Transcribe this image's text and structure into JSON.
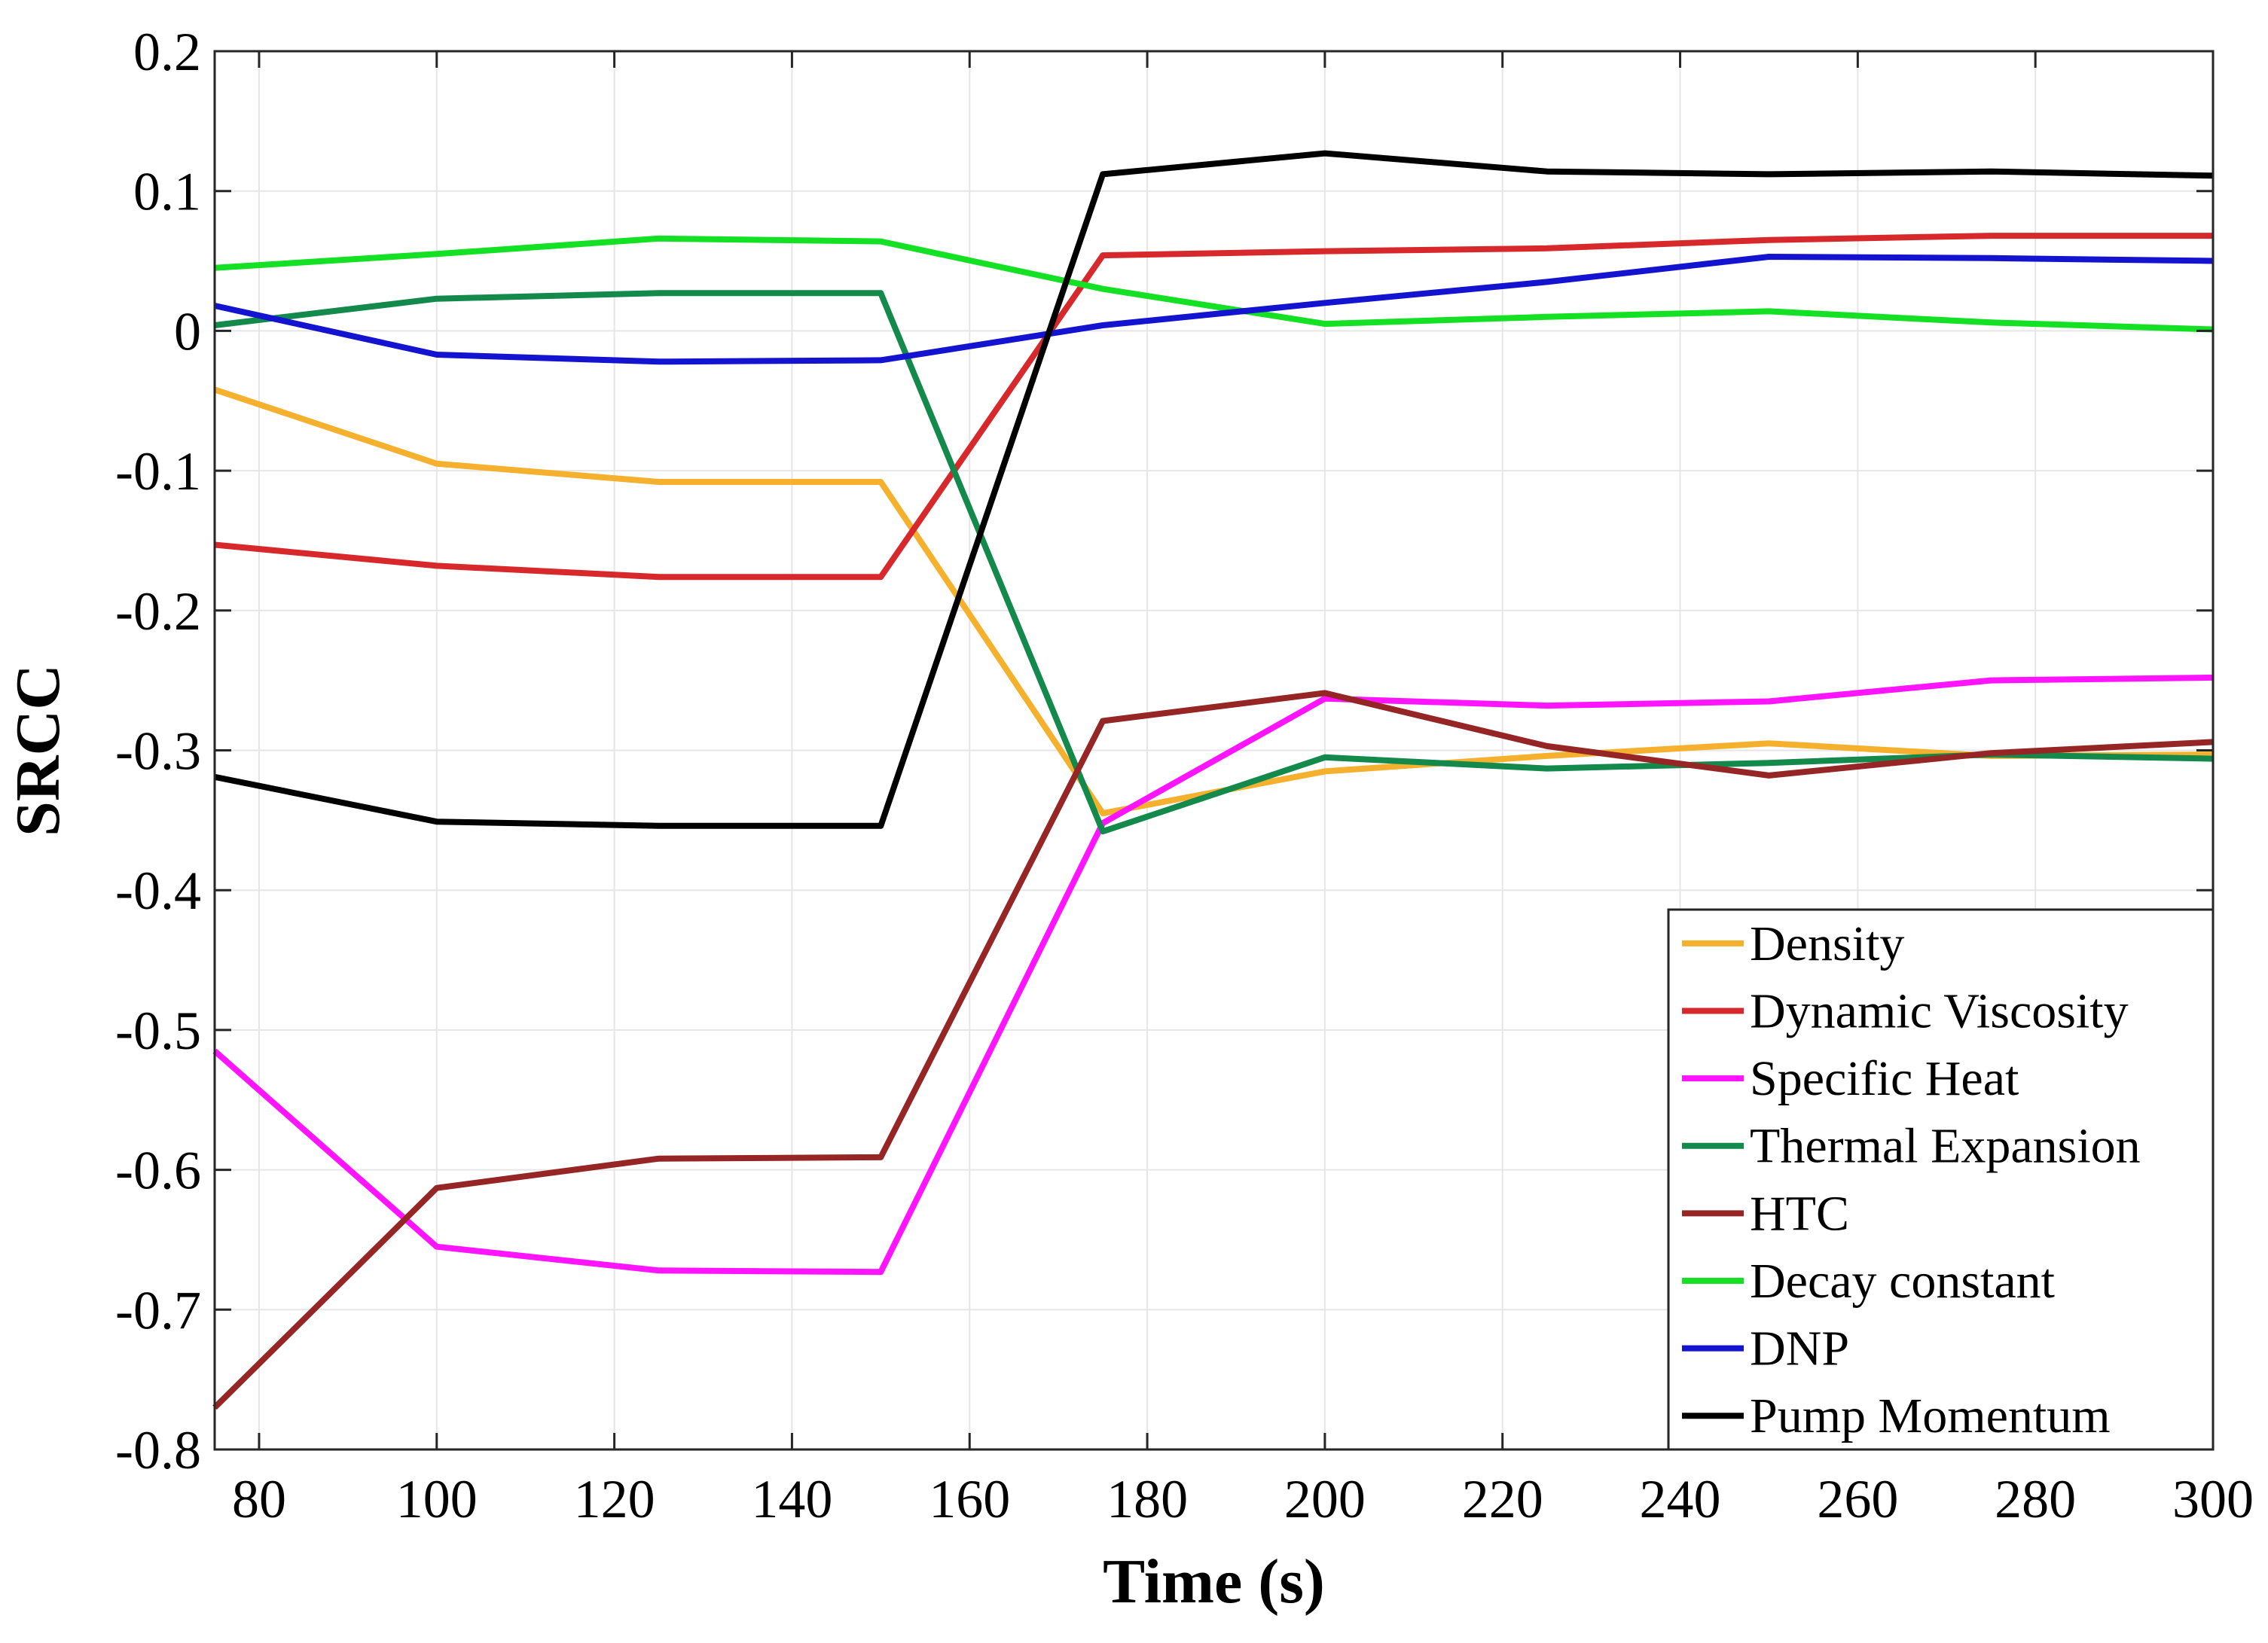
{
  "chart_data": {
    "type": "line",
    "title": "",
    "xlabel": "Time (s)",
    "ylabel": "SRCC",
    "xlim": [
      75,
      300
    ],
    "ylim": [
      -0.8,
      0.2
    ],
    "grid": true,
    "legend_position": "bottom-right",
    "x": [
      75,
      100,
      125,
      150,
      175,
      200,
      225,
      250,
      275,
      300
    ],
    "xticks": [
      80,
      100,
      120,
      140,
      160,
      180,
      200,
      220,
      240,
      260,
      280,
      300
    ],
    "xtick_labels": [
      "80",
      "100",
      "120",
      "140",
      "160",
      "180",
      "200",
      "220",
      "240",
      "260",
      "280",
      "300"
    ],
    "yticks": [
      0.2,
      0.1,
      0,
      -0.1,
      -0.2,
      -0.3,
      -0.4,
      -0.5,
      -0.6,
      -0.7,
      -0.8
    ],
    "ytick_labels": [
      "0.2",
      "0.1",
      "0",
      "-0.1",
      "-0.2",
      "-0.3",
      "-0.4",
      "-0.5",
      "-0.6",
      "-0.7",
      "-0.8"
    ],
    "series": [
      {
        "name": "Density",
        "color": "#f5b12e",
        "values": [
          -0.042,
          -0.095,
          -0.108,
          -0.108,
          -0.345,
          -0.315,
          -0.304,
          -0.295,
          -0.304,
          -0.303
        ]
      },
      {
        "name": "Dynamic Viscosity",
        "color": "#d7292b",
        "values": [
          -0.153,
          -0.168,
          -0.176,
          -0.176,
          0.054,
          0.057,
          0.059,
          0.065,
          0.068,
          0.068
        ]
      },
      {
        "name": "Specific Heat",
        "color": "#ff14ff",
        "values": [
          -0.515,
          -0.655,
          -0.672,
          -0.673,
          -0.352,
          -0.263,
          -0.268,
          -0.265,
          -0.25,
          -0.248
        ]
      },
      {
        "name": "Thermal Expansion",
        "color": "#138a4c",
        "values": [
          0.004,
          0.023,
          0.027,
          0.027,
          -0.358,
          -0.305,
          -0.313,
          -0.309,
          -0.303,
          -0.306
        ]
      },
      {
        "name": "HTC",
        "color": "#962626",
        "values": [
          -0.77,
          -0.613,
          -0.592,
          -0.591,
          -0.279,
          -0.259,
          -0.297,
          -0.318,
          -0.302,
          -0.294
        ]
      },
      {
        "name": "Decay constant",
        "color": "#14e024",
        "values": [
          0.045,
          0.055,
          0.066,
          0.064,
          0.03,
          0.005,
          0.01,
          0.014,
          0.006,
          0.001
        ]
      },
      {
        "name": "DNP",
        "color": "#1414d0",
        "values": [
          0.018,
          -0.017,
          -0.022,
          -0.021,
          0.004,
          0.02,
          0.035,
          0.053,
          0.052,
          0.05
        ]
      },
      {
        "name": "Pump Momentum",
        "color": "#000000",
        "values": [
          -0.319,
          -0.351,
          -0.354,
          -0.354,
          0.112,
          0.127,
          0.114,
          0.112,
          0.114,
          0.111
        ]
      }
    ]
  }
}
